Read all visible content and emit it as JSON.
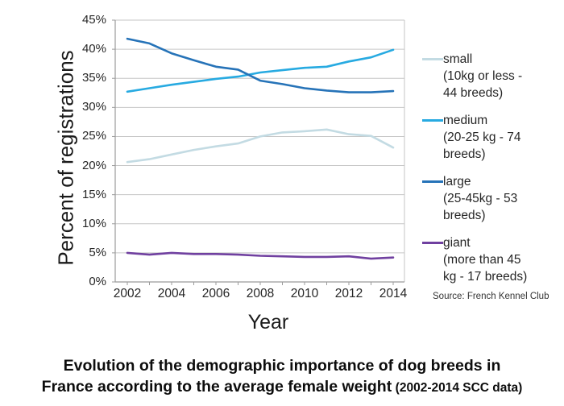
{
  "chart_data": {
    "type": "line",
    "xlabel": "Year",
    "ylabel": "Percent of registrations",
    "x": [
      2002,
      2003,
      2004,
      2005,
      2006,
      2007,
      2008,
      2009,
      2010,
      2011,
      2012,
      2013,
      2014
    ],
    "x_axis_ticks": [
      2002,
      2004,
      2006,
      2008,
      2010,
      2012,
      2014
    ],
    "ylim": [
      0,
      45
    ],
    "y_tick_step": 5,
    "y_tick_suffix": "%",
    "grid": true,
    "legend_position": "right",
    "series": [
      {
        "name": "small",
        "desc_lines": [
          "(10kg or less -",
          "44 breeds)"
        ],
        "color": "#c3dbe3",
        "values": [
          20.6,
          21.1,
          21.9,
          22.7,
          23.3,
          23.8,
          25.0,
          25.7,
          25.9,
          26.2,
          25.4,
          25.1,
          23.1
        ]
      },
      {
        "name": "medium",
        "desc_lines": [
          "(20-25 kg - 74",
          "breeds)"
        ],
        "color": "#27aae1",
        "values": [
          32.7,
          33.3,
          33.9,
          34.4,
          34.9,
          35.3,
          36.0,
          36.4,
          36.8,
          37.0,
          37.9,
          38.6,
          39.9
        ]
      },
      {
        "name": "large",
        "desc_lines": [
          "(25-45kg - 53",
          "breeds)"
        ],
        "color": "#2673b8",
        "values": [
          41.8,
          41.0,
          39.3,
          38.1,
          37.0,
          36.5,
          34.6,
          34.0,
          33.3,
          32.9,
          32.6,
          32.6,
          32.8
        ]
      },
      {
        "name": "giant",
        "desc_lines": [
          "(more than 45",
          "kg - 17 breeds)"
        ],
        "color": "#7040a0",
        "values": [
          5.0,
          4.7,
          5.0,
          4.8,
          4.8,
          4.7,
          4.5,
          4.4,
          4.3,
          4.3,
          4.4,
          4.0,
          4.2
        ]
      }
    ],
    "source_note": "Source: French Kennel Club",
    "colors": {
      "gridline": "#c6c6c6",
      "axis": "#9b9b9b"
    }
  },
  "caption": {
    "line1": "Evolution of the demographic importance of dog breeds in",
    "line2_main": "France according to the average female weight",
    "line2_small": "(2002-2014 SCC data)"
  }
}
